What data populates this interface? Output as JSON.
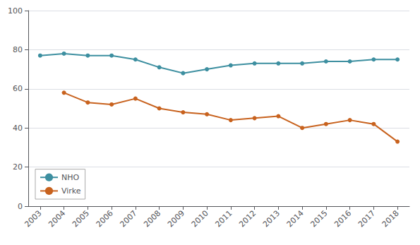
{
  "chart_data": {
    "type": "line",
    "x": [
      2003,
      2004,
      2005,
      2006,
      2007,
      2008,
      2009,
      2010,
      2011,
      2012,
      2013,
      2014,
      2015,
      2016,
      2017,
      2018
    ],
    "series": [
      {
        "name": "NHO",
        "color": "#3d8fa0",
        "values": [
          77,
          78,
          77,
          77,
          75,
          71,
          68,
          70,
          72,
          73,
          73,
          73,
          74,
          74,
          75,
          75
        ]
      },
      {
        "name": "Virke",
        "color": "#c8621e",
        "values": [
          null,
          58,
          53,
          52,
          55,
          50,
          48,
          47,
          44,
          45,
          46,
          40,
          42,
          44,
          42,
          33
        ]
      }
    ],
    "xlim": [
      2002.5,
      2018.5
    ],
    "xticks": [
      2003,
      2004,
      2005,
      2006,
      2007,
      2008,
      2009,
      2010,
      2011,
      2012,
      2013,
      2014,
      2015,
      2016,
      2017,
      2018
    ],
    "ylim": [
      0,
      100
    ],
    "yticks": [
      0,
      20,
      40,
      60,
      80,
      100
    ],
    "grid": true,
    "legend": "lower left",
    "marker": "circle"
  }
}
